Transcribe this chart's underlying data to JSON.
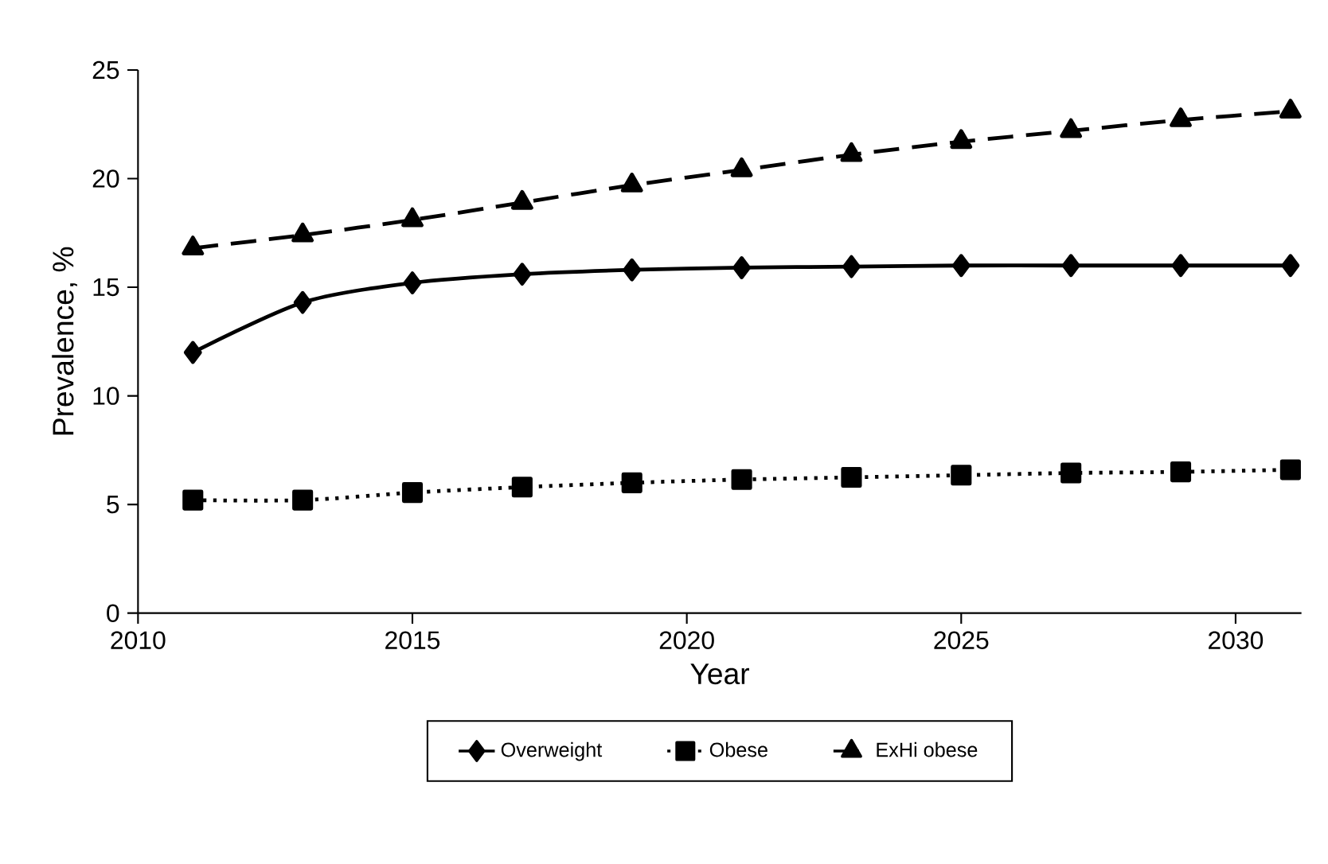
{
  "chart_data": {
    "type": "line",
    "xlabel": "Year",
    "ylabel": "Prevalence, %",
    "x": [
      2011,
      2013,
      2015,
      2017,
      2019,
      2021,
      2023,
      2025,
      2027,
      2029,
      2031
    ],
    "series": [
      {
        "name": "Overweight",
        "color": "#000000",
        "marker": "diamond",
        "line_style": "solid",
        "values": [
          12.0,
          14.3,
          15.2,
          15.6,
          15.8,
          15.9,
          15.95,
          16.0,
          16.0,
          16.0,
          16.0
        ]
      },
      {
        "name": "Obese",
        "color": "#000000",
        "marker": "square",
        "line_style": "dotted",
        "values": [
          5.2,
          5.2,
          5.55,
          5.8,
          6.0,
          6.15,
          6.25,
          6.35,
          6.45,
          6.5,
          6.6
        ]
      },
      {
        "name": "ExHi obese",
        "color": "#000000",
        "marker": "triangle",
        "line_style": "dashed",
        "values": [
          16.8,
          17.4,
          18.1,
          18.9,
          19.7,
          20.4,
          21.1,
          21.7,
          22.2,
          22.7,
          23.1
        ]
      }
    ],
    "xlim": [
      2010,
      2031.2
    ],
    "ylim": [
      0,
      25
    ],
    "xticks": [
      2010,
      2015,
      2020,
      2025,
      2030
    ],
    "yticks": [
      0,
      5,
      10,
      15,
      20,
      25
    ],
    "grid": false,
    "legend": "bottom"
  }
}
